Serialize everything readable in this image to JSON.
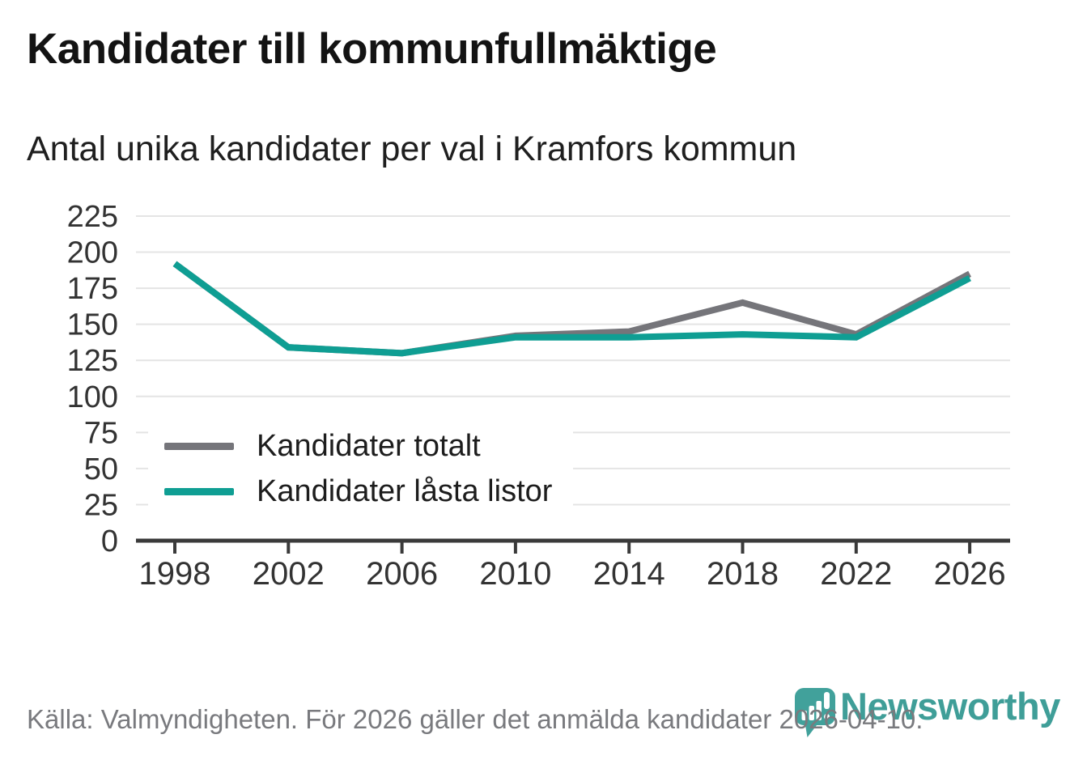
{
  "header": {
    "title": "Kandidater till kommunfullmäktige",
    "subtitle": "Antal unika kandidater per val i Kramfors kommun"
  },
  "chart_data": {
    "type": "line",
    "categories": [
      "1998",
      "2002",
      "2006",
      "2010",
      "2014",
      "2018",
      "2022",
      "2026"
    ],
    "series": [
      {
        "name": "Kandidater totalt",
        "color": "#75757a",
        "values": [
          192,
          134,
          130,
          142,
          145,
          165,
          143,
          185
        ]
      },
      {
        "name": "Kandidater låsta listor",
        "color": "#0f9e93",
        "values": [
          192,
          134,
          130,
          141,
          141,
          143,
          141,
          182
        ]
      }
    ],
    "ylim": [
      0,
      225
    ],
    "yticks": [
      0,
      25,
      50,
      75,
      100,
      125,
      150,
      175,
      200,
      225
    ],
    "grid": "horizontal",
    "legend_position": "inside-bottom-left",
    "grid_color": "#e4e4e4",
    "axis_color": "#3a3a3a",
    "tick_label_color": "#333333"
  },
  "footer": {
    "source": "Källa: Valmyndigheten. För 2026 gäller det anmälda kandidater 2026-04-10."
  },
  "branding": {
    "wordmark": "Newsworthy",
    "icon": "newsworthy-pin-barchart-icon",
    "accent_color": "#3f9e98"
  }
}
